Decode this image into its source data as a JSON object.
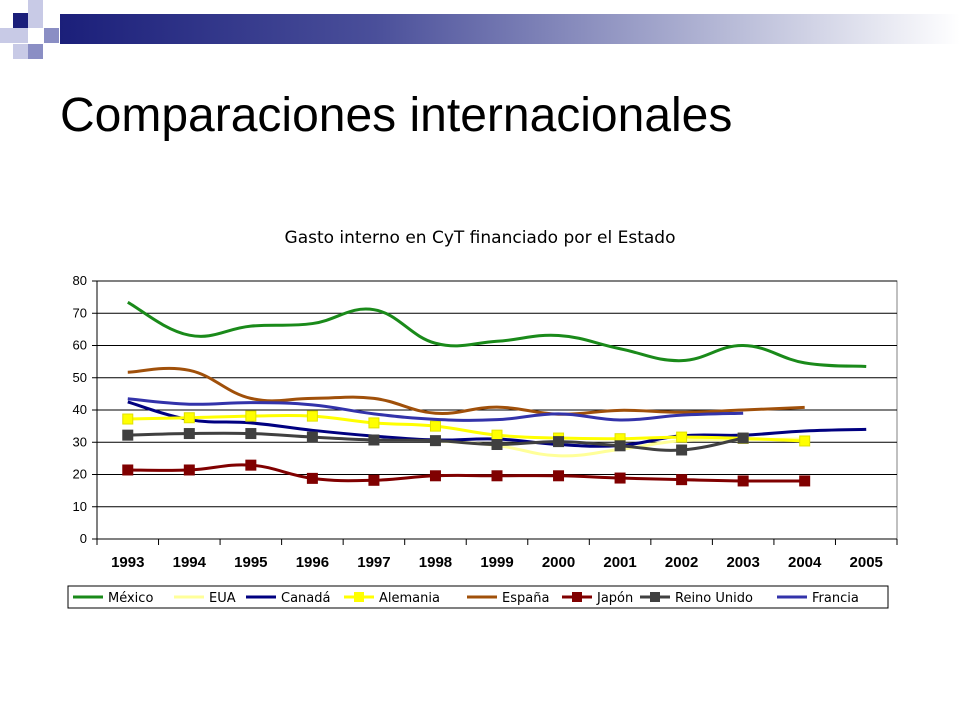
{
  "slide": {
    "title": "Comparaciones internacionales",
    "accent_dark": "#1b1f7a",
    "accent_light": "#a9acd4"
  },
  "chart_data": {
    "type": "line",
    "title": "Gasto interno en CyT financiado por el Estado",
    "xlabel": "",
    "ylabel": "",
    "ylim": [
      0,
      80
    ],
    "yticks": [
      0,
      10,
      20,
      30,
      40,
      50,
      60,
      70,
      80
    ],
    "grid": true,
    "legend_position": "bottom",
    "x": [
      "1993",
      "1994",
      "1995",
      "1996",
      "1997",
      "1998",
      "1999",
      "2000",
      "2001",
      "2002",
      "2003",
      "2004",
      "2005"
    ],
    "series": [
      {
        "name": "México",
        "color": "#1a8a1a",
        "marker": "none",
        "values": [
          73.4,
          63.2,
          66.0,
          66.8,
          71.1,
          60.7,
          61.3,
          63.1,
          59.0,
          55.3,
          60.0,
          54.6,
          53.5
        ]
      },
      {
        "name": "EUA",
        "color": "#ffff99",
        "marker": "none",
        "values": [
          null,
          null,
          null,
          null,
          null,
          30.5,
          29.0,
          25.8,
          27.8,
          30.5,
          30.8,
          31.0,
          null
        ]
      },
      {
        "name": "Canadá",
        "color": "#000080",
        "marker": "none",
        "values": [
          42.5,
          37.0,
          36.0,
          33.7,
          31.9,
          30.7,
          31.0,
          29.3,
          29.0,
          32.0,
          32.2,
          33.5,
          34.0
        ]
      },
      {
        "name": "Alemania",
        "color": "#ffff00",
        "marker": "square",
        "values": [
          37.2,
          37.6,
          38.1,
          38.1,
          36.0,
          35.0,
          32.2,
          31.3,
          31.1,
          31.6,
          31.2,
          30.4,
          null
        ]
      },
      {
        "name": "España",
        "color": "#a0500a",
        "marker": "none",
        "values": [
          51.7,
          52.3,
          43.6,
          43.6,
          43.6,
          39.0,
          40.9,
          38.7,
          39.9,
          39.3,
          40.0,
          40.8,
          null
        ]
      },
      {
        "name": "Japón",
        "color": "#800000",
        "marker": "square",
        "values": [
          21.4,
          21.4,
          22.9,
          18.8,
          18.2,
          19.6,
          19.6,
          19.6,
          18.9,
          18.4,
          18.0,
          18.0,
          null
        ]
      },
      {
        "name": "Reino Unido",
        "color": "#404040",
        "marker": "square",
        "values": [
          32.2,
          32.7,
          32.7,
          31.6,
          30.7,
          30.5,
          29.3,
          30.2,
          28.9,
          27.6,
          31.3,
          null,
          null
        ]
      },
      {
        "name": "Francia",
        "color": "#3333aa",
        "marker": "none",
        "values": [
          43.5,
          41.8,
          42.3,
          41.6,
          38.8,
          37.1,
          37.0,
          38.8,
          36.9,
          38.4,
          39.0,
          null,
          null
        ]
      }
    ]
  }
}
